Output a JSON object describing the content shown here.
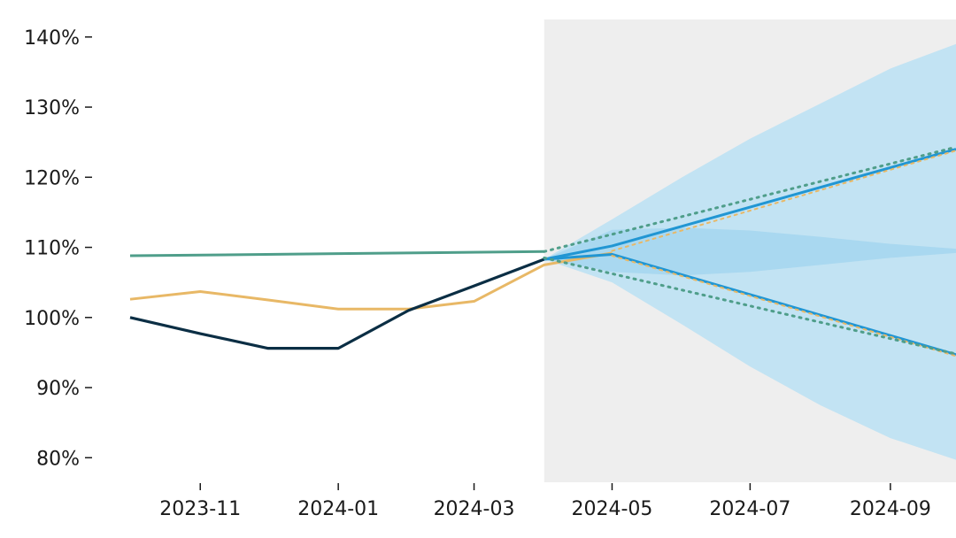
{
  "chart_data": {
    "type": "line",
    "title": "",
    "xlabel": "",
    "ylabel": "",
    "x_range": [
      "2023-10-01",
      "2024-09-30"
    ],
    "ylim": [
      0.765,
      1.425
    ],
    "grid": false,
    "legend": "none",
    "y_ticks": [
      {
        "value": 0.8,
        "label": "80%"
      },
      {
        "value": 0.9,
        "label": "90%"
      },
      {
        "value": 1.0,
        "label": "100%"
      },
      {
        "value": 1.1,
        "label": "110%"
      },
      {
        "value": 1.2,
        "label": "120%"
      },
      {
        "value": 1.3,
        "label": "130%"
      },
      {
        "value": 1.4,
        "label": "140%"
      }
    ],
    "x_ticks": [
      {
        "value": "2023-11-01",
        "label": "2023-11"
      },
      {
        "value": "2024-01-01",
        "label": "2024-01"
      },
      {
        "value": "2024-03-01",
        "label": "2024-03"
      },
      {
        "value": "2024-05-01",
        "label": "2024-05"
      },
      {
        "value": "2024-07-01",
        "label": "2024-07"
      },
      {
        "value": "2024-09-01",
        "label": "2024-09"
      }
    ],
    "forecast_region": {
      "start": "2024-04-01",
      "end": "2024-09-30",
      "color": "#eeeeee"
    },
    "bands": [
      {
        "color": "#bfe1f2",
        "opacity": 0.95,
        "x": [
          "2024-04-01",
          "2024-05-01",
          "2024-06-01",
          "2024-07-01",
          "2024-08-01",
          "2024-09-01",
          "2024-09-30"
        ],
        "upper": [
          1.083,
          1.14,
          1.2,
          1.255,
          1.305,
          1.355,
          1.39
        ],
        "lower": [
          1.083,
          1.05,
          0.99,
          0.93,
          0.875,
          0.828,
          0.797
        ]
      },
      {
        "color": "#a4d6ee",
        "opacity": 0.85,
        "x": [
          "2024-04-01",
          "2024-05-01",
          "2024-06-01",
          "2024-07-01",
          "2024-08-01",
          "2024-09-01",
          "2024-09-30"
        ],
        "upper": [
          1.083,
          1.125,
          1.128,
          1.124,
          1.115,
          1.105,
          1.098
        ],
        "lower": [
          1.083,
          1.065,
          1.06,
          1.065,
          1.075,
          1.085,
          1.092
        ]
      }
    ],
    "series": [
      {
        "color": "#4f9e8a",
        "width": 3,
        "dash": "",
        "x": [
          "2023-10-01",
          "2024-01-01",
          "2024-04-01"
        ],
        "y": [
          1.088,
          1.091,
          1.094
        ]
      },
      {
        "color": "#e8b866",
        "width": 3,
        "dash": "",
        "x": [
          "2023-10-01",
          "2023-11-01",
          "2023-12-01",
          "2024-01-01",
          "2024-02-01",
          "2024-03-01",
          "2024-04-01",
          "2024-05-01"
        ],
        "y": [
          1.026,
          1.037,
          1.025,
          1.012,
          1.012,
          1.023,
          1.075,
          1.092
        ]
      },
      {
        "color": "#0b2e44",
        "width": 3.2,
        "dash": "",
        "x": [
          "2023-10-01",
          "2023-11-01",
          "2023-12-01",
          "2024-01-01",
          "2024-02-01",
          "2024-03-01",
          "2024-04-01"
        ],
        "y": [
          1.0,
          0.977,
          0.956,
          0.956,
          1.01,
          1.045,
          1.083
        ]
      },
      {
        "color": "#2196d3",
        "width": 3,
        "dash": "",
        "x": [
          "2024-04-01",
          "2024-05-01",
          "2024-09-30"
        ],
        "y": [
          1.083,
          1.102,
          1.24
        ]
      },
      {
        "color": "#2196d3",
        "width": 3,
        "dash": "",
        "x": [
          "2024-04-01",
          "2024-05-01",
          "2024-09-30"
        ],
        "y": [
          1.083,
          1.09,
          0.947
        ]
      },
      {
        "color": "#e8b866",
        "width": 2,
        "dash": "3 5",
        "x": [
          "2024-05-01",
          "2024-09-30"
        ],
        "y": [
          1.095,
          1.238
        ]
      },
      {
        "color": "#e8b866",
        "width": 2,
        "dash": "3 5",
        "x": [
          "2024-05-01",
          "2024-09-30"
        ],
        "y": [
          1.088,
          0.945
        ]
      },
      {
        "color": "#4f9e8a",
        "width": 3,
        "dash": "2 6",
        "x": [
          "2024-04-01",
          "2024-09-30"
        ],
        "y": [
          1.094,
          1.243
        ]
      },
      {
        "color": "#4f9e8a",
        "width": 3,
        "dash": "2 6",
        "x": [
          "2024-04-01",
          "2024-09-30"
        ],
        "y": [
          1.085,
          0.948
        ]
      }
    ]
  }
}
